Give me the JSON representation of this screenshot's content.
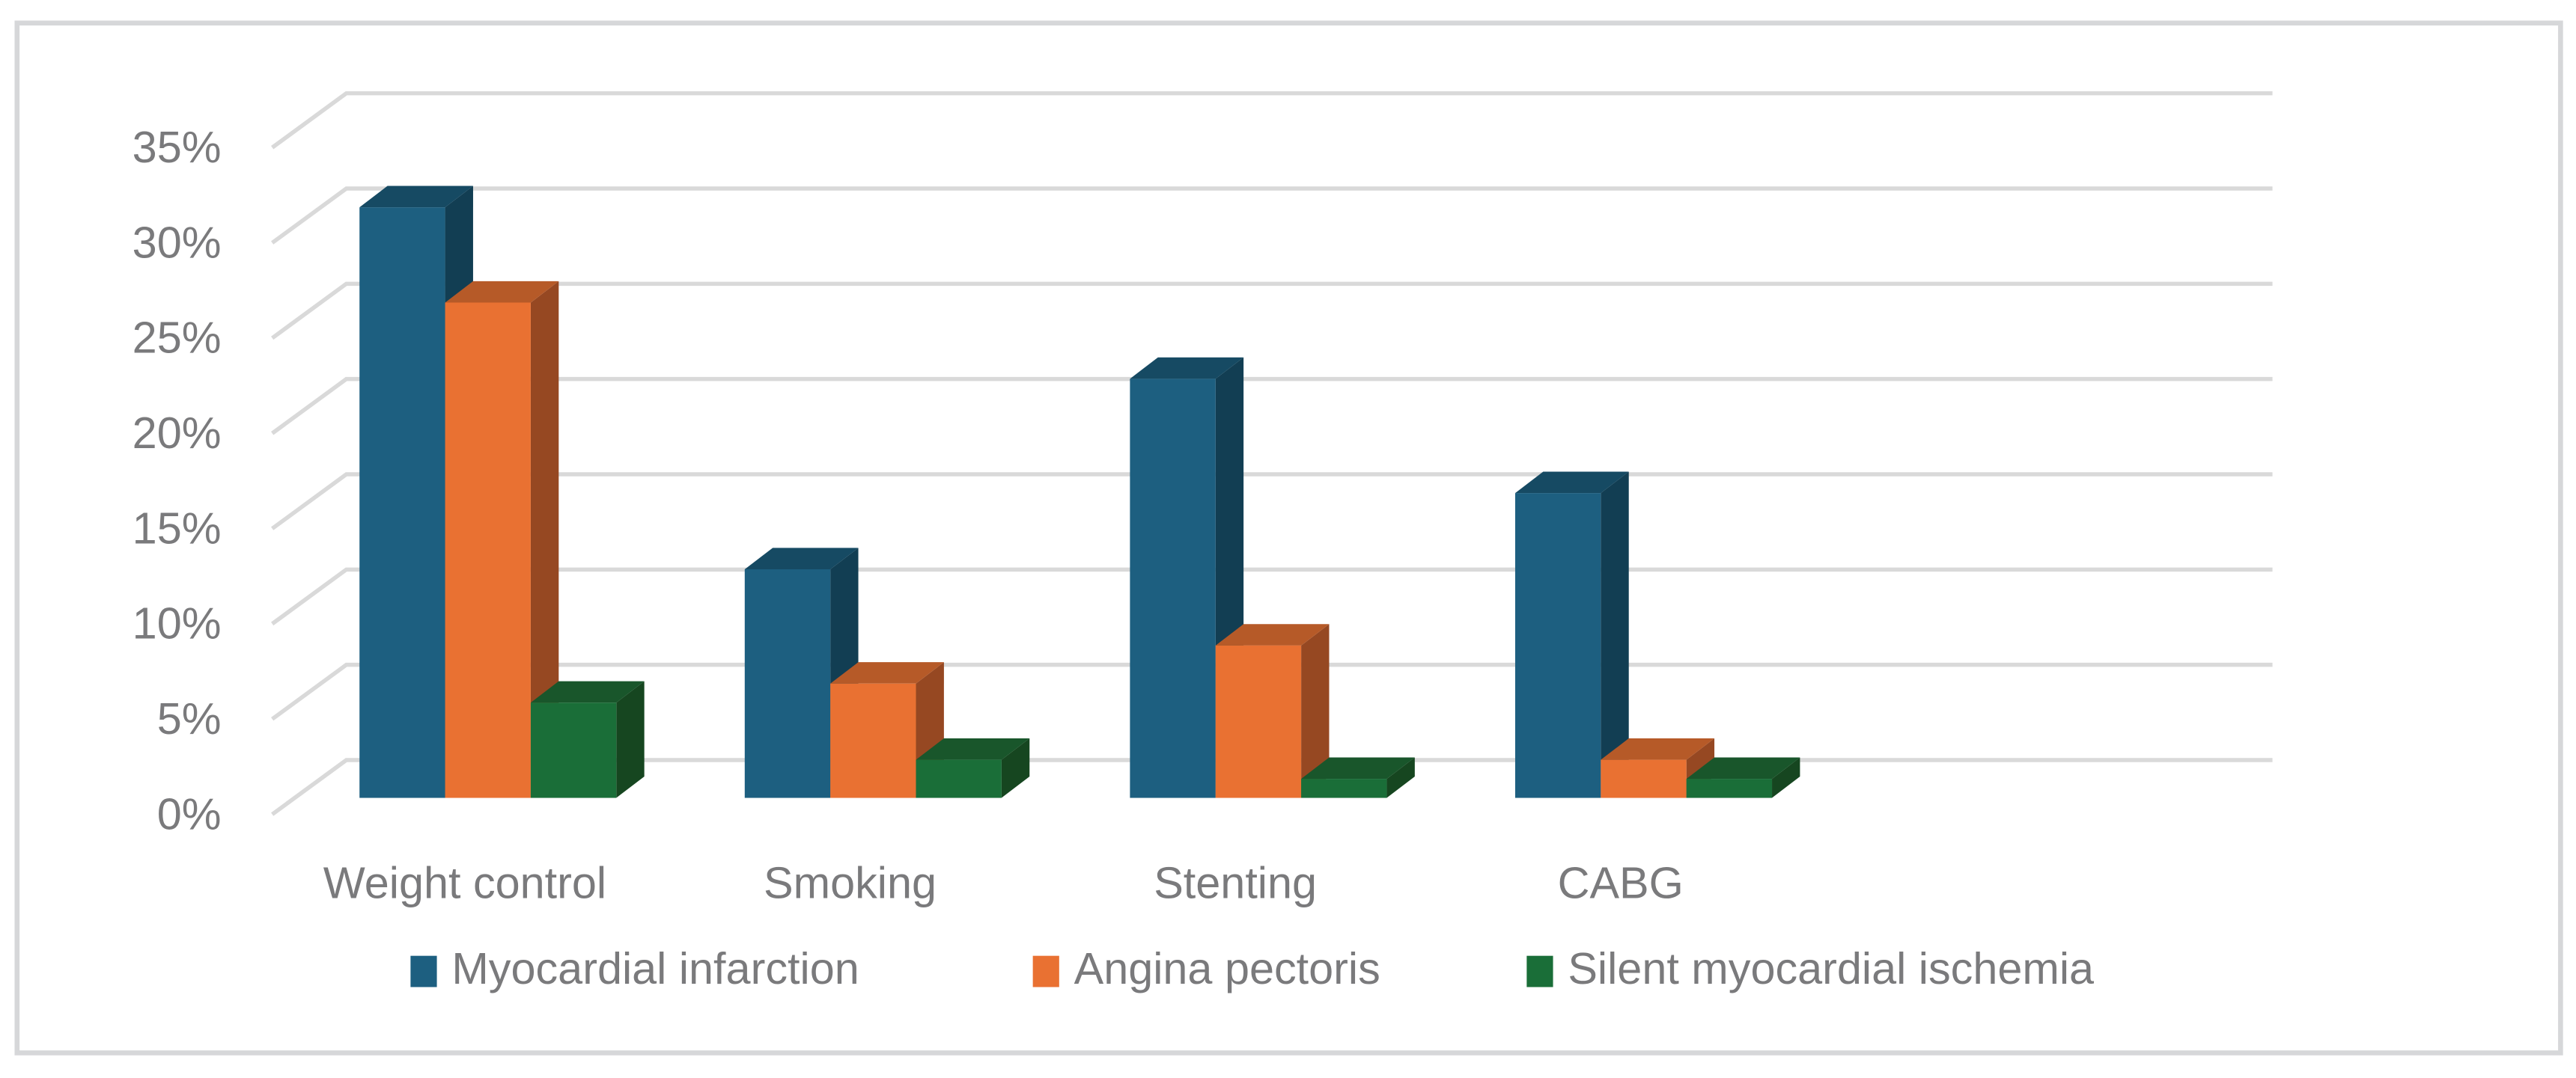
{
  "chart_data": {
    "type": "bar",
    "subtype": "3d-clustered-column",
    "title": "",
    "xlabel": "",
    "ylabel": "",
    "categories": [
      "Weight control",
      "Smoking",
      "Stenting",
      "CABG"
    ],
    "series": [
      {
        "name": "Myocardial infarction",
        "values": [
          31,
          12,
          22,
          16
        ],
        "color": "#1d5f80",
        "top_color": "#164a63",
        "side_color": "#123e53"
      },
      {
        "name": "Angina pectoris",
        "values": [
          26,
          6,
          8,
          2
        ],
        "color": "#e97132",
        "top_color": "#b65a28",
        "side_color": "#964822"
      },
      {
        "name": "Silent myocardial ischemia",
        "values": [
          5,
          2,
          1,
          1
        ],
        "color": "#1a6e38",
        "top_color": "#19562b",
        "side_color": "#164620"
      }
    ],
    "y_ticks": [
      "0%",
      "5%",
      "10%",
      "15%",
      "20%",
      "25%",
      "30%",
      "35%"
    ],
    "ylim": [
      0,
      35
    ],
    "y_unit": "%",
    "grid": true,
    "legend_position": "bottom"
  },
  "style": {
    "gridline_color": "#d9d9d9",
    "frame_color": "#d6d7d9",
    "text_color": "#7a7a7c"
  }
}
